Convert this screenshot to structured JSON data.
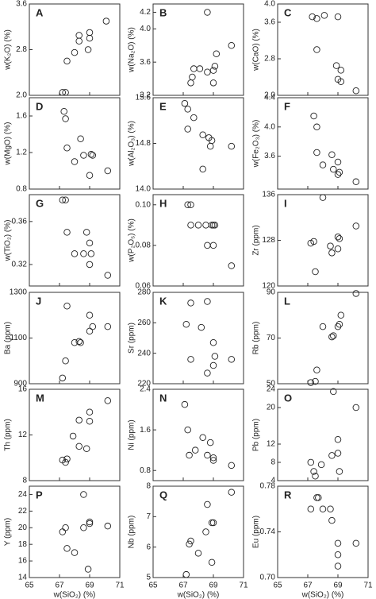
{
  "chart_data": [
    {
      "type": "scatter",
      "title": "A",
      "ylabel": "w(K₂O) (%)",
      "xlim": [
        65,
        71
      ],
      "xticks": [
        65,
        67,
        69,
        71
      ],
      "ylim": [
        2.0,
        3.6
      ],
      "yticks": [
        {
          "value": 2,
          "label": "2.0"
        },
        2.8,
        3.6
      ],
      "x": [
        67.2,
        67.4,
        67.5,
        68.0,
        68.3,
        68.3,
        68.9,
        69.0,
        69.0,
        70.1
      ],
      "values": [
        2.05,
        2.05,
        2.6,
        2.75,
        3.05,
        2.95,
        2.8,
        3.1,
        3.0,
        3.3
      ]
    },
    {
      "type": "scatter",
      "title": "B",
      "ylabel": "w(Na₂O) (%)",
      "xlim": [
        65,
        71
      ],
      "xticks": [
        65,
        67,
        69,
        71
      ],
      "ylim": [
        3.2,
        4.3
      ],
      "yticks": [
        3.2,
        3.6,
        {
          "value": 4,
          "label": "4.0"
        },
        4.2
      ],
      "x": [
        67.5,
        67.6,
        67.7,
        68.1,
        68.6,
        68.6,
        69.0,
        69.1,
        69.0,
        69.2,
        70.2
      ],
      "values": [
        3.35,
        3.42,
        3.52,
        3.52,
        4.2,
        3.48,
        3.5,
        3.55,
        3.35,
        3.7,
        3.8
      ]
    },
    {
      "type": "scatter",
      "title": "C",
      "ylabel": "w(CaO) (%)",
      "xlim": [
        65,
        71
      ],
      "xticks": [
        65,
        67,
        69,
        71
      ],
      "ylim": [
        2.0,
        4.0
      ],
      "yticks": [
        {
          "value": 2,
          "label": "2.0"
        },
        2.8,
        3.6,
        {
          "value": 4,
          "label": "4.0"
        }
      ],
      "x": [
        67.3,
        67.6,
        68.1,
        67.6,
        69.0,
        68.9,
        69.0,
        69.2,
        69.2,
        70.2
      ],
      "values": [
        3.72,
        3.68,
        3.75,
        3.0,
        3.72,
        2.65,
        2.35,
        2.55,
        2.3,
        2.1
      ]
    },
    {
      "type": "scatter",
      "title": "D",
      "ylabel": "w(MgO) (%)",
      "xlim": [
        65,
        71
      ],
      "xticks": [
        65,
        67,
        69,
        71
      ],
      "ylim": [
        0.8,
        1.8
      ],
      "yticks": [
        0.8,
        1.2,
        1.6
      ],
      "x": [
        67.3,
        67.4,
        67.5,
        68.0,
        68.4,
        68.6,
        69.1,
        69.2,
        69.0,
        70.2
      ],
      "values": [
        1.65,
        1.57,
        1.25,
        1.1,
        1.35,
        1.17,
        1.18,
        1.17,
        0.95,
        1.0
      ]
    },
    {
      "type": "scatter",
      "title": "E",
      "ylabel": "w(Al₂O₃) (%)",
      "xlim": [
        65,
        71
      ],
      "xticks": [
        65,
        67,
        69,
        71
      ],
      "ylim": [
        14.0,
        15.6
      ],
      "yticks": [
        {
          "value": 14,
          "label": "14.0"
        },
        14.8,
        15.6
      ],
      "x": [
        67.1,
        67.3,
        67.3,
        67.7,
        68.3,
        68.7,
        68.8,
        68.9,
        68.3,
        70.2
      ],
      "values": [
        15.5,
        15.4,
        15.05,
        15.25,
        14.95,
        14.9,
        14.75,
        14.85,
        14.35,
        14.75
      ]
    },
    {
      "type": "scatter",
      "title": "F",
      "ylabel": "w(Fe₂O₃) (%)",
      "xlim": [
        65,
        71
      ],
      "xticks": [
        65,
        67,
        69,
        71
      ],
      "ylim": [
        3.15,
        4.4
      ],
      "yticks": [
        3.6,
        {
          "value": 4,
          "label": "4.0"
        },
        4.4
      ],
      "x": [
        67.4,
        67.6,
        67.6,
        68.0,
        68.6,
        68.7,
        69.0,
        69.0,
        69.1,
        70.2
      ],
      "values": [
        4.15,
        4.0,
        3.65,
        3.48,
        3.62,
        3.42,
        3.52,
        3.35,
        3.38,
        3.25
      ]
    },
    {
      "type": "scatter",
      "title": "G",
      "ylabel": "w(TiO₂) (%)",
      "xlim": [
        65,
        71
      ],
      "xticks": [
        65,
        67,
        69,
        71
      ],
      "ylim": [
        0.3,
        0.385
      ],
      "yticks": [
        0.32,
        0.36
      ],
      "x": [
        67.2,
        67.4,
        67.5,
        68.0,
        68.6,
        68.8,
        69.0,
        69.1,
        69.0,
        70.2
      ],
      "values": [
        0.38,
        0.38,
        0.35,
        0.33,
        0.33,
        0.35,
        0.34,
        0.33,
        0.32,
        0.31
      ]
    },
    {
      "type": "scatter",
      "title": "H",
      "ylabel": "w(P₂O₅) (%)",
      "xlim": [
        65,
        71
      ],
      "xticks": [
        65,
        67,
        69,
        71
      ],
      "ylim": [
        0.06,
        0.105
      ],
      "yticks": [
        0.06,
        0.08,
        {
          "value": 0.1,
          "label": "0.10"
        }
      ],
      "x": [
        67.3,
        67.5,
        67.5,
        68.0,
        68.5,
        68.9,
        69.0,
        69.1,
        69.0,
        68.6,
        70.2
      ],
      "values": [
        0.1,
        0.1,
        0.09,
        0.09,
        0.09,
        0.09,
        0.09,
        0.09,
        0.08,
        0.08,
        0.07
      ]
    },
    {
      "type": "scatter",
      "title": "I",
      "ylabel": "Zr (ppm)",
      "xlim": [
        65,
        71
      ],
      "xticks": [
        65,
        67,
        69,
        71
      ],
      "ylim": [
        120,
        136
      ],
      "yticks": [
        120,
        128,
        136
      ],
      "x": [
        67.2,
        67.4,
        67.5,
        68.0,
        68.5,
        68.6,
        69.0,
        69.1,
        69.0,
        70.2
      ],
      "values": [
        127.5,
        127.8,
        122.5,
        135.5,
        127,
        125.8,
        128.6,
        128.3,
        126.5,
        130.5
      ]
    },
    {
      "type": "scatter",
      "title": "J",
      "ylabel": "Ba (ppm)",
      "xlim": [
        65,
        71
      ],
      "xticks": [
        65,
        67,
        69,
        71
      ],
      "ylim": [
        900,
        1300
      ],
      "yticks": [
        900,
        1100,
        1300
      ],
      "x": [
        67.2,
        67.4,
        67.5,
        68.0,
        68.3,
        68.4,
        69.0,
        69.0,
        69.2,
        70.2
      ],
      "values": [
        925,
        1000,
        1240,
        1080,
        1085,
        1080,
        1130,
        1200,
        1150,
        1150
      ]
    },
    {
      "type": "scatter",
      "title": "K",
      "ylabel": "Sr (ppm)",
      "xlim": [
        65,
        71
      ],
      "xticks": [
        65,
        67,
        69,
        71
      ],
      "ylim": [
        220,
        280
      ],
      "yticks": [
        220,
        240,
        260,
        280
      ],
      "x": [
        67.2,
        67.5,
        67.5,
        68.2,
        68.6,
        68.6,
        69.0,
        69.0,
        69.1,
        70.2
      ],
      "values": [
        259,
        273,
        236,
        257,
        274,
        227,
        247,
        232,
        238,
        236
      ]
    },
    {
      "type": "scatter",
      "title": "L",
      "ylabel": "Rb (ppm)",
      "xlim": [
        65,
        71
      ],
      "xticks": [
        65,
        67,
        69,
        71
      ],
      "ylim": [
        50,
        90
      ],
      "yticks": [
        50,
        70,
        90
      ],
      "x": [
        67.2,
        67.5,
        67.6,
        68.0,
        68.6,
        68.7,
        69.0,
        69.1,
        69.2,
        70.2
      ],
      "values": [
        50.5,
        51,
        56,
        75,
        70.5,
        71,
        75,
        76,
        80,
        89.5
      ]
    },
    {
      "type": "scatter",
      "title": "M",
      "ylabel": "Th (ppm)",
      "xlim": [
        65,
        71
      ],
      "xticks": [
        65,
        67,
        69,
        71
      ],
      "ylim": [
        8,
        16
      ],
      "yticks": [
        8,
        12,
        16
      ],
      "x": [
        67.2,
        67.4,
        67.5,
        67.9,
        68.3,
        68.3,
        69.0,
        69.0,
        68.8,
        70.2
      ],
      "values": [
        9.8,
        9.6,
        9.9,
        11.9,
        13.3,
        11.0,
        13.2,
        14.0,
        10.8,
        15.0
      ]
    },
    {
      "type": "scatter",
      "title": "N",
      "ylabel": "Ni (ppm)",
      "xlim": [
        65,
        71
      ],
      "xticks": [
        65,
        67,
        69,
        71
      ],
      "ylim": [
        0.6,
        2.4
      ],
      "yticks": [
        0.8,
        1.6,
        2.4
      ],
      "x": [
        67.1,
        67.3,
        67.4,
        67.8,
        68.3,
        68.6,
        68.8,
        69.0,
        69.0,
        70.2
      ],
      "values": [
        2.1,
        1.6,
        1.1,
        1.2,
        1.45,
        1.1,
        1.35,
        1.05,
        1.0,
        0.9
      ]
    },
    {
      "type": "scatter",
      "title": "O",
      "ylabel": "Pb (ppm)",
      "xlim": [
        65,
        71
      ],
      "xticks": [
        65,
        67,
        69,
        71
      ],
      "ylim": [
        4,
        24
      ],
      "yticks": [
        4,
        8,
        12,
        20,
        24
      ],
      "x": [
        67.2,
        67.4,
        67.5,
        67.9,
        68.6,
        68.7,
        69.0,
        69.0,
        69.1,
        70.2
      ],
      "values": [
        8,
        6,
        5,
        7.5,
        9.5,
        23.5,
        13,
        10,
        6,
        20
      ]
    },
    {
      "type": "scatter",
      "title": "P",
      "ylabel": "Y (ppm)",
      "xlabel": "w(SiO₂) (%)",
      "xlim": [
        65,
        71
      ],
      "xticks": [
        65,
        67,
        69,
        71
      ],
      "ylim": [
        14,
        25
      ],
      "yticks": [
        14,
        16,
        18,
        20,
        22,
        24
      ],
      "x": [
        67.2,
        67.4,
        67.5,
        68.0,
        68.6,
        68.6,
        69.0,
        69.0,
        68.9,
        70.2
      ],
      "values": [
        19.5,
        20,
        17.5,
        17,
        24,
        20,
        20.5,
        20.7,
        15,
        20.2
      ]
    },
    {
      "type": "scatter",
      "title": "Q",
      "ylabel": "Nb (ppm)",
      "xlabel": "w(SiO₂) (%)",
      "xlim": [
        65,
        71
      ],
      "xticks": [
        65,
        67,
        69,
        71
      ],
      "ylim": [
        5,
        8
      ],
      "yticks": [
        5,
        6,
        7,
        8
      ],
      "x": [
        67.2,
        67.4,
        67.5,
        68.0,
        68.5,
        68.6,
        68.9,
        69.0,
        68.9,
        70.2
      ],
      "values": [
        5.1,
        6.1,
        6.2,
        5.8,
        6.5,
        7.4,
        6.8,
        6.8,
        5.5,
        7.8
      ]
    },
    {
      "type": "scatter",
      "title": "R",
      "ylabel": "Eu (ppm)",
      "xlabel": "w(SiO₂) (%)",
      "xlim": [
        65,
        71
      ],
      "xticks": [
        65,
        67,
        69,
        71
      ],
      "ylim": [
        0.7,
        0.78
      ],
      "yticks": [
        {
          "value": 0.7,
          "label": "0.70"
        },
        0.74,
        0.78
      ],
      "x": [
        67.2,
        67.6,
        67.7,
        68.0,
        68.5,
        68.6,
        69.0,
        69.0,
        69.0,
        70.2
      ],
      "values": [
        0.76,
        0.77,
        0.77,
        0.76,
        0.76,
        0.75,
        0.73,
        0.72,
        0.71,
        0.73
      ]
    }
  ]
}
